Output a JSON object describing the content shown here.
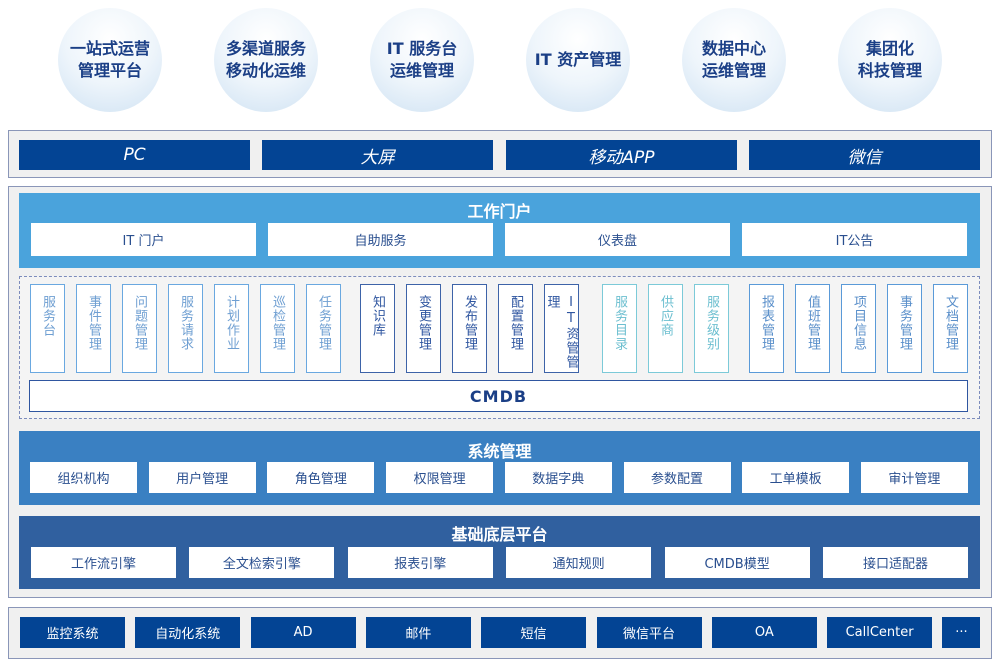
{
  "scenarios": [
    [
      "一站式运营",
      "管理平台"
    ],
    [
      "多渠道服务",
      "移动化运维"
    ],
    [
      "IT 服务台",
      "运维管理"
    ],
    [
      "IT 资产管理",
      ""
    ],
    [
      "数据中心",
      "运维管理"
    ],
    [
      "集团化",
      "科技管理"
    ]
  ],
  "channels": [
    "PC",
    "大屏",
    "移动APP",
    "微信"
  ],
  "portal": {
    "title": "工作门户",
    "items": [
      "IT 门户",
      "自助服务",
      "仪表盘",
      "IT公告"
    ]
  },
  "modules": {
    "group1": [
      "服务台",
      "事件管理",
      "问题管理",
      "服务请求",
      "计划作业",
      "巡检管理",
      "任务管理"
    ],
    "group2": [
      "知识库",
      "变更管理",
      "发布管理",
      "配置管理",
      "IT资管管理"
    ],
    "group3": [
      "服务目录",
      "供应商",
      "服务级别"
    ],
    "group4": [
      "报表管理",
      "值班管理",
      "项目信息",
      "事务管理",
      "文档管理"
    ],
    "cmdb": "CMDB"
  },
  "system": {
    "title": "系统管理",
    "items": [
      "组织机构",
      "用户管理",
      "角色管理",
      "权限管理",
      "数据字典",
      "参数配置",
      "工单模板",
      "审计管理"
    ]
  },
  "base": {
    "title": "基础底层平台",
    "items": [
      "工作流引擎",
      "全文检索引擎",
      "报表引擎",
      "通知规则",
      "CMDB模型",
      "接口适配器"
    ]
  },
  "integrations": [
    "监控系统",
    "自动化系统",
    "AD",
    "邮件",
    "短信",
    "微信平台",
    "OA",
    "CallCenter",
    "···"
  ],
  "colors": {
    "dark": "#034494",
    "portal": "#4aa3dc",
    "system": "#3a80c2",
    "base": "#30609f",
    "group1": "#6aa8e0",
    "group2": "#3d63a8",
    "group3": "#7ccad8",
    "group4": "#5a9ad8"
  }
}
